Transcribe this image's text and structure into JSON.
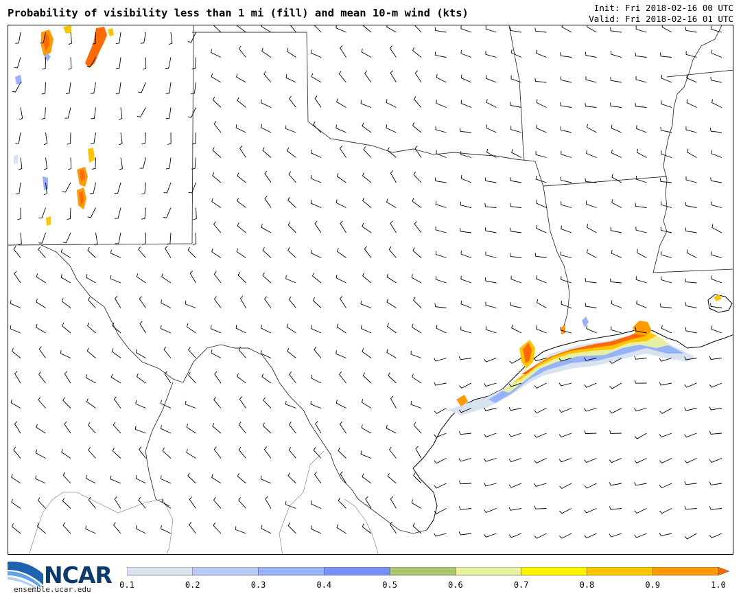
{
  "header": {
    "title": "Probability of visibility less than 1 mi (fill) and mean 10-m wind (kts)",
    "init": "Init: Fri 2018-02-16 00 UTC",
    "valid": "Valid: Fri 2018-02-16 01 UTC"
  },
  "logo": {
    "name": "NCAR",
    "url": "ensemble.ucar.edu"
  },
  "colorbar": {
    "ticks": [
      "0.1",
      "0.2",
      "0.3",
      "0.4",
      "0.5",
      "0.6",
      "0.7",
      "0.8",
      "0.9",
      "1.0"
    ],
    "colors": [
      "#d8e2f0",
      "#b7cbf5",
      "#96b2fb",
      "#7d8ffb",
      "#a6c86a",
      "#e6f0a0",
      "#fff200",
      "#ffc400",
      "#ff9a00",
      "#ff6a00"
    ]
  },
  "colors": {
    "border": "#000000",
    "state_border": "#444444",
    "county_border": "#888888"
  }
}
